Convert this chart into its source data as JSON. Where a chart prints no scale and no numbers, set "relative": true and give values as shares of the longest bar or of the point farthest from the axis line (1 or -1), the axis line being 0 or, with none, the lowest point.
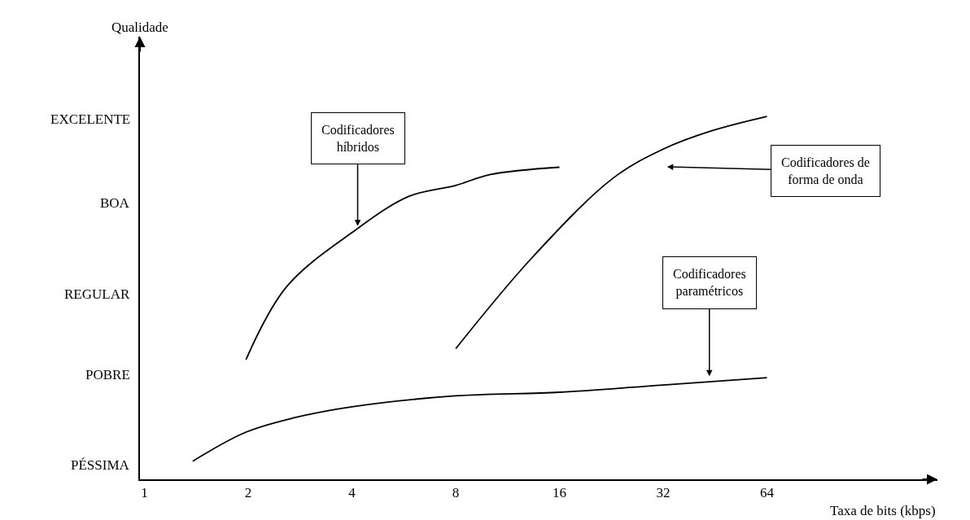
{
  "chart_data": {
    "type": "line",
    "xlabel": "Taxa de bits (kbps)",
    "log": "x",
    "relative": true,
    "xlim": [
      0.97,
      200
    ],
    "xticks": [
      1,
      2,
      4,
      8,
      16,
      32,
      64
    ],
    "series": [
      {
        "color": "#000000",
        "x": [
          1.97,
          2.58,
          4,
          5.86,
          8,
          10.1,
          16
        ],
        "values": [
          0.33,
          0.53,
          0.68,
          0.78,
          0.81,
          0.84,
          0.86
        ]
      },
      {
        "color": "#000000",
        "x": [
          8,
          13.3,
          22.9,
          32,
          44.1,
          64
        ],
        "values": [
          0.36,
          0.61,
          0.83,
          0.91,
          0.96,
          1.0
        ]
      },
      {
        "color": "#000000",
        "x": [
          1.38,
          1.97,
          2.73,
          4,
          8,
          16,
          32,
          64
        ],
        "values": [
          0.05,
          0.13,
          0.17,
          0.2,
          0.23,
          0.24,
          0.26,
          0.28
        ]
      }
    ],
    "annotations": [
      "Qualidade",
      "PÉSSIMA",
      "POBRE",
      "REGULAR",
      "BOA",
      "EXCELENTE",
      "Codificadores\nhíbridos",
      "Codificadores de\nforma de onda",
      "Codificadores\nparamétricos"
    ],
    "marker": "none",
    "line_style": "solid"
  }
}
